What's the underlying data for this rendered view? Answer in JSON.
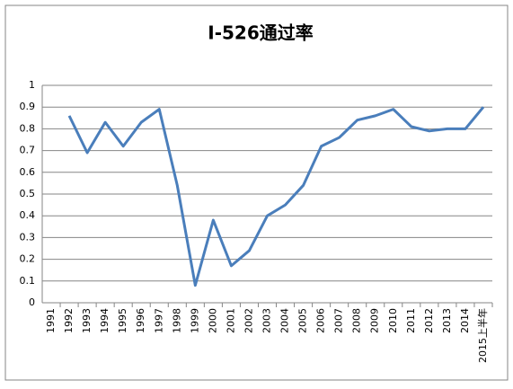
{
  "chart_data": {
    "type": "line",
    "title": "I-526通过率",
    "categories": [
      "1991",
      "1992",
      "1993",
      "1994",
      "1995",
      "1996",
      "1997",
      "1998",
      "1999",
      "2000",
      "2001",
      "2002",
      "2003",
      "2004",
      "2005",
      "2006",
      "2007",
      "2008",
      "2009",
      "2010",
      "2011",
      "2012",
      "2013",
      "2014",
      "2015上半年"
    ],
    "series": [
      {
        "name": "I-526通过率",
        "color": "#4a7ebb",
        "values": [
          null,
          0.86,
          0.69,
          0.83,
          0.72,
          0.83,
          0.89,
          0.54,
          0.08,
          0.38,
          0.17,
          0.24,
          0.4,
          0.45,
          0.54,
          0.72,
          0.76,
          0.84,
          0.86,
          0.89,
          0.81,
          0.79,
          0.8,
          0.8,
          0.9
        ]
      }
    ],
    "ylim": [
      0,
      1
    ],
    "yticks": [
      0,
      0.1,
      0.2,
      0.3,
      0.4,
      0.5,
      0.6,
      0.7,
      0.8,
      0.9,
      1
    ],
    "grid": true
  }
}
